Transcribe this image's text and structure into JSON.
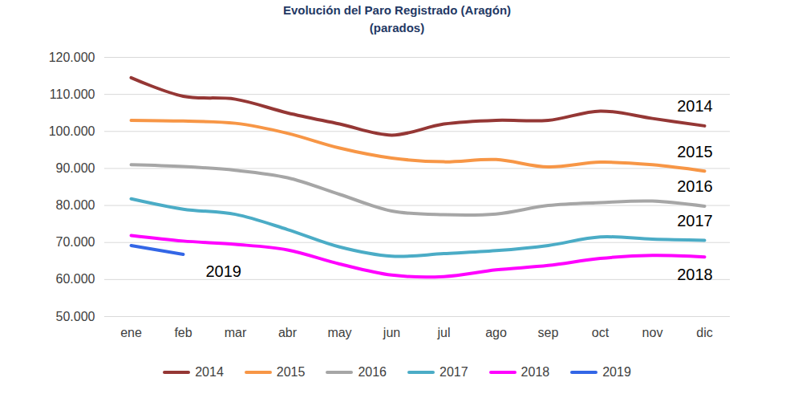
{
  "chart_data": {
    "type": "line",
    "title": "Evolución del Paro Registrado (Aragón)",
    "subtitle": "(parados)",
    "categories": [
      "ene",
      "feb",
      "mar",
      "abr",
      "may",
      "jun",
      "jul",
      "ago",
      "sep",
      "oct",
      "nov",
      "dic"
    ],
    "series": [
      {
        "name": "2014",
        "color": "#953735",
        "values": [
          114500,
          109500,
          108700,
          105000,
          102000,
          99000,
          102000,
          103000,
          103000,
          105500,
          103500,
          101500
        ]
      },
      {
        "name": "2015",
        "color": "#F79646",
        "values": [
          103000,
          102800,
          102200,
          99500,
          95500,
          92800,
          91800,
          92400,
          90400,
          91700,
          91000,
          89300
        ]
      },
      {
        "name": "2016",
        "color": "#A6A6A6",
        "values": [
          91000,
          90500,
          89500,
          87500,
          83000,
          78500,
          77500,
          77700,
          80000,
          80800,
          81200,
          79800
        ]
      },
      {
        "name": "2017",
        "color": "#4BACC6",
        "values": [
          81800,
          79000,
          77600,
          73500,
          68800,
          66300,
          67000,
          67800,
          69200,
          71500,
          70900,
          70600
        ]
      },
      {
        "name": "2018",
        "color": "#FF00FF",
        "values": [
          71900,
          70400,
          69500,
          68000,
          64200,
          61200,
          60800,
          62600,
          63800,
          65700,
          66500,
          66100
        ]
      },
      {
        "name": "2019",
        "color": "#3366E6",
        "values": [
          69200,
          66800,
          null,
          null,
          null,
          null,
          null,
          null,
          null,
          null,
          null,
          null
        ]
      }
    ],
    "ylim": [
      50000,
      120000
    ],
    "yticks": [
      {
        "value": 50000,
        "label": "50.000"
      },
      {
        "value": 60000,
        "label": "60.000"
      },
      {
        "value": 70000,
        "label": "70.000"
      },
      {
        "value": 80000,
        "label": "80.000"
      },
      {
        "value": 90000,
        "label": "90.000"
      },
      {
        "value": 100000,
        "label": "100.000"
      },
      {
        "value": 110000,
        "label": "110.000"
      },
      {
        "value": 120000,
        "label": "120.000"
      }
    ],
    "grid": true,
    "legend": "bottom"
  }
}
